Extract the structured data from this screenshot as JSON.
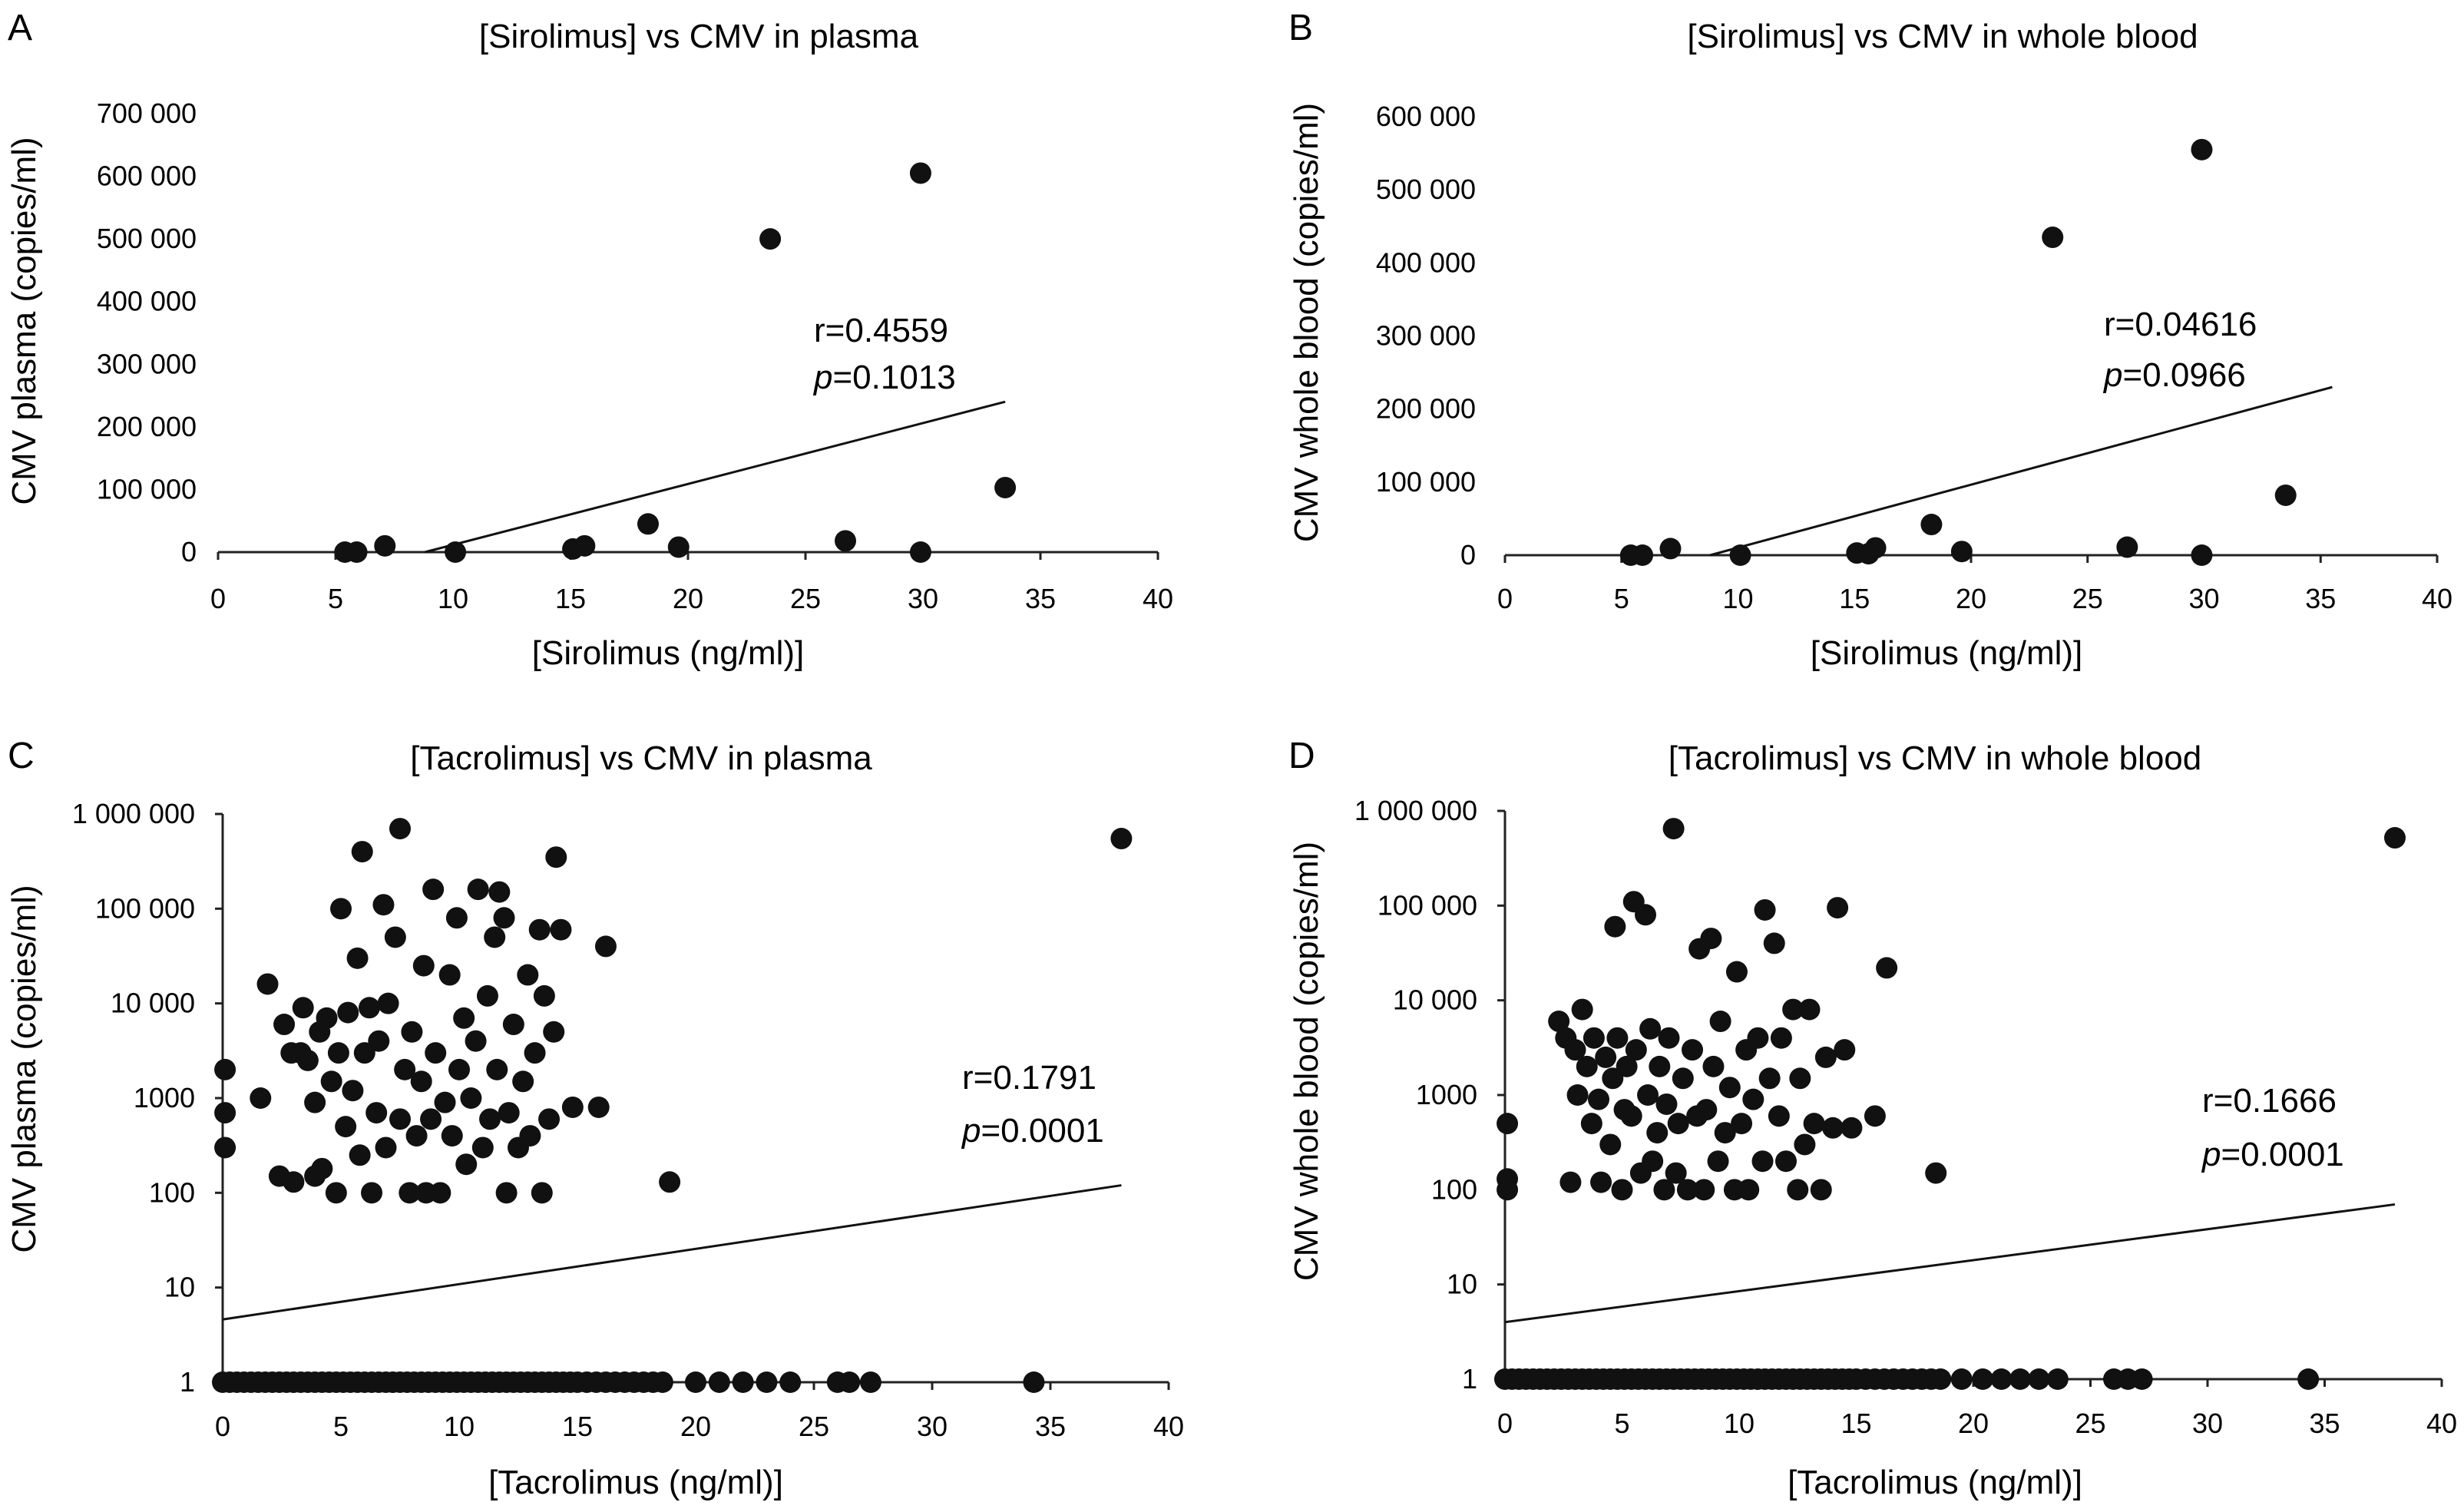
{
  "figure": {
    "panels": [
      "A",
      "B",
      "C",
      "D"
    ]
  },
  "chart_data": [
    {
      "id": "A",
      "type": "scatter",
      "panel_label": "A",
      "title": "[Sirolimus] vs CMV in plasma",
      "xlabel": "[Sirolimus (ng/ml)]",
      "ylabel": "CMV plasma (copies/ml)",
      "yscale": "linear",
      "xlim": [
        0,
        40
      ],
      "ylim": [
        0,
        700000
      ],
      "xticks": [
        0,
        5,
        10,
        15,
        20,
        25,
        30,
        35,
        40
      ],
      "xtick_labels": [
        "0",
        "5",
        "10",
        "15",
        "20",
        "25",
        "30",
        "35",
        "40"
      ],
      "yticks": [
        0,
        100000,
        200000,
        300000,
        400000,
        500000,
        600000,
        700000
      ],
      "ytick_labels": [
        "0",
        "100 000",
        "200 000",
        "300 000",
        "400 000",
        "500 000",
        "600 000",
        "700 000"
      ],
      "points": [
        [
          5.4,
          0
        ],
        [
          5.9,
          0
        ],
        [
          7.1,
          10000
        ],
        [
          10.1,
          0
        ],
        [
          15.1,
          5000
        ],
        [
          15.6,
          10000
        ],
        [
          18.3,
          45000
        ],
        [
          19.6,
          8000
        ],
        [
          23.5,
          500000
        ],
        [
          26.7,
          18000
        ],
        [
          29.9,
          0
        ],
        [
          29.9,
          605000
        ],
        [
          33.5,
          103000
        ]
      ],
      "trendline": [
        [
          8.8,
          0
        ],
        [
          33.5,
          240000
        ]
      ],
      "stats": {
        "r": "r=0.4559",
        "p_label": "p",
        "p_value": "=0.1013"
      }
    },
    {
      "id": "B",
      "type": "scatter",
      "panel_label": "B",
      "title": "[Sirolimus] vs CMV in whole blood",
      "xlabel": "[Sirolimus (ng/ml)]",
      "ylabel": "CMV whole blood (copies/ml)",
      "yscale": "linear",
      "xlim": [
        0,
        40
      ],
      "ylim": [
        0,
        600000
      ],
      "xticks": [
        0,
        5,
        10,
        15,
        20,
        25,
        30,
        35,
        40
      ],
      "xtick_labels": [
        "0",
        "5",
        "10",
        "15",
        "20",
        "25",
        "30",
        "35",
        "40"
      ],
      "yticks": [
        0,
        100000,
        200000,
        300000,
        400000,
        500000,
        600000
      ],
      "ytick_labels": [
        "0",
        "100 000",
        "200 000",
        "300 000",
        "400 000",
        "500 000",
        "600 000"
      ],
      "points": [
        [
          5.4,
          0
        ],
        [
          5.9,
          0
        ],
        [
          7.1,
          9000
        ],
        [
          10.1,
          0
        ],
        [
          15.1,
          3000
        ],
        [
          15.6,
          2000
        ],
        [
          15.9,
          10000
        ],
        [
          18.3,
          42000
        ],
        [
          19.6,
          5000
        ],
        [
          23.5,
          435000
        ],
        [
          26.7,
          11000
        ],
        [
          29.9,
          0
        ],
        [
          29.9,
          555000
        ],
        [
          33.5,
          82000
        ]
      ],
      "trendline": [
        [
          8.8,
          0
        ],
        [
          35.5,
          230000
        ]
      ],
      "stats": {
        "r": "r=0.04616",
        "p_label": "p",
        "p_value": "=0.0966"
      }
    },
    {
      "id": "C",
      "type": "scatter",
      "panel_label": "C",
      "title": "[Tacrolimus] vs CMV in plasma",
      "xlabel": "[Tacrolimus (ng/ml)]",
      "ylabel": "CMV plasma (copies/ml)",
      "yscale": "log",
      "xlim": [
        0,
        40
      ],
      "ylim": [
        1,
        1000000
      ],
      "xticks": [
        0,
        5,
        10,
        15,
        20,
        25,
        30,
        35,
        40
      ],
      "xtick_labels": [
        "0",
        "5",
        "10",
        "15",
        "20",
        "25",
        "30",
        "35",
        "40"
      ],
      "yticks": [
        1,
        10,
        100,
        1000,
        10000,
        100000,
        1000000
      ],
      "ytick_labels": [
        "1",
        "10",
        "100",
        "1000",
        "10 000",
        "100 000",
        "1 000 000"
      ],
      "points": [
        [
          0.1,
          300
        ],
        [
          0.1,
          700
        ],
        [
          0.1,
          2000
        ],
        [
          1.6,
          1000
        ],
        [
          1.9,
          16000
        ],
        [
          2.4,
          150
        ],
        [
          2.6,
          6000
        ],
        [
          2.9,
          3000
        ],
        [
          3.0,
          130
        ],
        [
          3.3,
          3000
        ],
        [
          3.4,
          9000
        ],
        [
          3.6,
          2500
        ],
        [
          3.9,
          150
        ],
        [
          3.9,
          900
        ],
        [
          4.1,
          5000
        ],
        [
          4.2,
          180
        ],
        [
          4.4,
          7000
        ],
        [
          4.6,
          1500
        ],
        [
          4.8,
          100
        ],
        [
          4.9,
          3000
        ],
        [
          5.0,
          100000
        ],
        [
          5.2,
          500
        ],
        [
          5.3,
          8000
        ],
        [
          5.5,
          1200
        ],
        [
          5.7,
          30000
        ],
        [
          5.8,
          250
        ],
        [
          5.9,
          400000
        ],
        [
          6.0,
          3000
        ],
        [
          6.2,
          9000
        ],
        [
          6.3,
          100
        ],
        [
          6.5,
          700
        ],
        [
          6.6,
          4000
        ],
        [
          6.8,
          110000
        ],
        [
          6.9,
          300
        ],
        [
          7.0,
          10000
        ],
        [
          7.3,
          50000
        ],
        [
          7.5,
          700000
        ],
        [
          7.5,
          600
        ],
        [
          7.7,
          2000
        ],
        [
          7.9,
          100
        ],
        [
          8.0,
          5000
        ],
        [
          8.2,
          400
        ],
        [
          8.4,
          1500
        ],
        [
          8.5,
          25000
        ],
        [
          8.6,
          100
        ],
        [
          8.8,
          600
        ],
        [
          8.9,
          160000
        ],
        [
          9.0,
          3000
        ],
        [
          9.2,
          100
        ],
        [
          9.4,
          900
        ],
        [
          9.6,
          20000
        ],
        [
          9.7,
          400
        ],
        [
          9.9,
          80000
        ],
        [
          10.0,
          2000
        ],
        [
          10.2,
          7000
        ],
        [
          10.3,
          200
        ],
        [
          10.5,
          1000
        ],
        [
          10.7,
          4000
        ],
        [
          10.8,
          160000
        ],
        [
          11.0,
          300
        ],
        [
          11.2,
          12000
        ],
        [
          11.3,
          600
        ],
        [
          11.5,
          50000
        ],
        [
          11.6,
          2000
        ],
        [
          11.7,
          150000
        ],
        [
          11.9,
          80000
        ],
        [
          12.0,
          100
        ],
        [
          12.1,
          700
        ],
        [
          12.3,
          6000
        ],
        [
          12.5,
          300
        ],
        [
          12.7,
          1500
        ],
        [
          12.9,
          20000
        ],
        [
          13.0,
          400
        ],
        [
          13.2,
          3000
        ],
        [
          13.4,
          60000
        ],
        [
          13.5,
          100
        ],
        [
          13.6,
          12000
        ],
        [
          13.8,
          600
        ],
        [
          14.0,
          5000
        ],
        [
          14.1,
          350000
        ],
        [
          14.3,
          60000
        ],
        [
          14.8,
          800
        ],
        [
          15.9,
          800
        ],
        [
          16.2,
          40000
        ],
        [
          18.9,
          130
        ],
        [
          38.0,
          550000
        ]
      ],
      "zero_points_x": [
        0,
        0.3,
        0.6,
        0.9,
        1.2,
        1.5,
        1.8,
        2.1,
        2.4,
        2.7,
        3,
        3.3,
        3.6,
        3.9,
        4.2,
        4.5,
        4.8,
        5.1,
        5.4,
        5.7,
        6,
        6.3,
        6.6,
        6.9,
        7.2,
        7.5,
        7.8,
        8.1,
        8.4,
        8.7,
        9,
        9.3,
        9.6,
        9.9,
        10.2,
        10.5,
        10.8,
        11.1,
        11.4,
        11.7,
        12,
        12.3,
        12.6,
        12.9,
        13.2,
        13.5,
        13.8,
        14.1,
        14.4,
        14.7,
        15,
        15.4,
        15.8,
        16.2,
        16.6,
        17,
        17.4,
        17.8,
        18.2,
        18.6,
        20,
        21,
        22,
        23,
        24,
        26,
        26.5,
        27.4,
        34.3
      ],
      "trendline": [
        [
          0,
          4.6
        ],
        [
          38,
          120
        ]
      ],
      "stats": {
        "r": "r=0.1791",
        "p_label": "p",
        "p_value": "=0.0001"
      }
    },
    {
      "id": "D",
      "type": "scatter",
      "panel_label": "D",
      "title": "[Tacrolimus] vs CMV in whole blood",
      "xlabel": "[Tacrolimus (ng/ml)]",
      "ylabel": "CMV whole blood (copies/ml)",
      "yscale": "log",
      "xlim": [
        0,
        40
      ],
      "ylim": [
        1,
        1000000
      ],
      "xticks": [
        0,
        5,
        10,
        15,
        20,
        25,
        30,
        35,
        40
      ],
      "xtick_labels": [
        "0",
        "5",
        "10",
        "15",
        "20",
        "25",
        "30",
        "35",
        "40"
      ],
      "yticks": [
        1,
        10,
        100,
        1000,
        10000,
        100000,
        1000000
      ],
      "ytick_labels": [
        "1",
        "10",
        "100",
        "1000",
        "10 000",
        "100 000",
        "1 000 000"
      ],
      "points": [
        [
          0.1,
          100
        ],
        [
          0.1,
          130
        ],
        [
          0.1,
          500
        ],
        [
          2.3,
          6000
        ],
        [
          2.6,
          4000
        ],
        [
          2.8,
          120
        ],
        [
          3.0,
          3000
        ],
        [
          3.1,
          1000
        ],
        [
          3.3,
          8000
        ],
        [
          3.5,
          2000
        ],
        [
          3.7,
          500
        ],
        [
          3.8,
          4000
        ],
        [
          4.0,
          900
        ],
        [
          4.1,
          120
        ],
        [
          4.3,
          2500
        ],
        [
          4.5,
          300
        ],
        [
          4.6,
          1500
        ],
        [
          4.7,
          60000
        ],
        [
          4.8,
          4000
        ],
        [
          5.0,
          100
        ],
        [
          5.1,
          700
        ],
        [
          5.2,
          2000
        ],
        [
          5.4,
          600
        ],
        [
          5.5,
          110000
        ],
        [
          5.6,
          3000
        ],
        [
          5.8,
          150
        ],
        [
          6.0,
          80000
        ],
        [
          6.1,
          1000
        ],
        [
          6.2,
          5000
        ],
        [
          6.3,
          200
        ],
        [
          6.5,
          400
        ],
        [
          6.6,
          2000
        ],
        [
          6.8,
          100
        ],
        [
          6.9,
          800
        ],
        [
          7.0,
          4000
        ],
        [
          7.2,
          650000
        ],
        [
          7.3,
          150
        ],
        [
          7.4,
          500
        ],
        [
          7.6,
          1500
        ],
        [
          7.8,
          100
        ],
        [
          8.0,
          3000
        ],
        [
          8.2,
          600
        ],
        [
          8.3,
          35000
        ],
        [
          8.5,
          100
        ],
        [
          8.6,
          700
        ],
        [
          8.8,
          45000
        ],
        [
          8.9,
          2000
        ],
        [
          9.1,
          200
        ],
        [
          9.2,
          6000
        ],
        [
          9.4,
          400
        ],
        [
          9.6,
          1200
        ],
        [
          9.8,
          100
        ],
        [
          9.9,
          20000
        ],
        [
          10.1,
          500
        ],
        [
          10.3,
          3000
        ],
        [
          10.4,
          100
        ],
        [
          10.6,
          900
        ],
        [
          10.8,
          4000
        ],
        [
          11.0,
          200
        ],
        [
          11.1,
          90000
        ],
        [
          11.3,
          1500
        ],
        [
          11.5,
          40000
        ],
        [
          11.7,
          600
        ],
        [
          11.8,
          4000
        ],
        [
          12.0,
          200
        ],
        [
          12.3,
          8000
        ],
        [
          12.5,
          100
        ],
        [
          12.6,
          1500
        ],
        [
          12.8,
          300
        ],
        [
          13.0,
          8000
        ],
        [
          13.2,
          500
        ],
        [
          13.5,
          100
        ],
        [
          13.7,
          2500
        ],
        [
          14.0,
          450
        ],
        [
          14.2,
          95000
        ],
        [
          14.5,
          3000
        ],
        [
          14.8,
          450
        ],
        [
          15.8,
          600
        ],
        [
          16.3,
          22000
        ],
        [
          18.4,
          150
        ],
        [
          38.0,
          520000
        ]
      ],
      "zero_points_x": [
        0,
        0.3,
        0.6,
        0.9,
        1.2,
        1.5,
        1.8,
        2.1,
        2.4,
        2.7,
        3,
        3.3,
        3.6,
        3.9,
        4.2,
        4.5,
        4.8,
        5.1,
        5.4,
        5.7,
        6,
        6.3,
        6.6,
        6.9,
        7.2,
        7.5,
        7.8,
        8.1,
        8.4,
        8.7,
        9,
        9.3,
        9.6,
        9.9,
        10.2,
        10.5,
        10.8,
        11.1,
        11.4,
        11.7,
        12,
        12.3,
        12.6,
        12.9,
        13.2,
        13.5,
        13.8,
        14.1,
        14.4,
        14.7,
        15,
        15.4,
        15.8,
        16.2,
        16.6,
        17,
        17.4,
        17.8,
        18.2,
        18.6,
        19.5,
        20.4,
        21.2,
        22,
        22.8,
        23.6,
        26,
        26.6,
        27.2,
        34.3
      ],
      "trendline": [
        [
          0,
          4.0
        ],
        [
          38,
          70
        ]
      ],
      "stats": {
        "r": "r=0.1666",
        "p_label": "p",
        "p_value": "=0.0001"
      }
    }
  ]
}
